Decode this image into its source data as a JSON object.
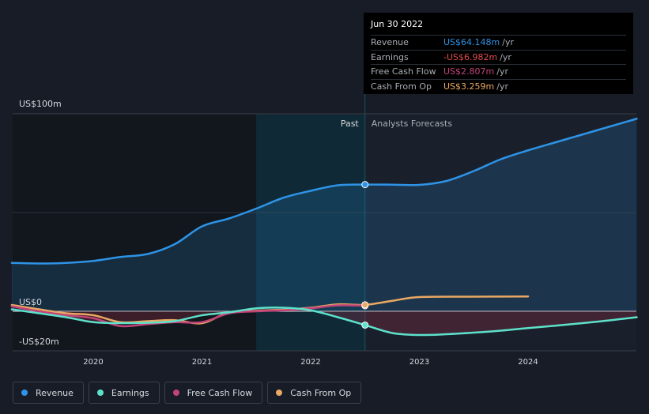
{
  "chart_data": {
    "type": "line",
    "title": "",
    "x_ticks": [
      2020,
      2021,
      2022,
      2023,
      2024
    ],
    "ylim": [
      -20,
      100
    ],
    "y_ticks": [
      {
        "value": 100,
        "label": "US$100m"
      },
      {
        "value": 0,
        "label": "US$0"
      },
      {
        "value": -20,
        "label": "-US$20m"
      }
    ],
    "past_label": "Past",
    "forecast_label": "Analysts Forecasts",
    "divider_x": 2022.5,
    "highlight_start_x": 2021.5,
    "series": [
      {
        "name": "Revenue",
        "color": "#2e93e6",
        "fill": true,
        "points": [
          [
            2019.25,
            24.5
          ],
          [
            2019.5,
            24.2
          ],
          [
            2019.75,
            24.5
          ],
          [
            2020,
            25.5
          ],
          [
            2020.25,
            27.5
          ],
          [
            2020.5,
            29
          ],
          [
            2020.75,
            34
          ],
          [
            2021,
            43
          ],
          [
            2021.25,
            47
          ],
          [
            2021.5,
            52
          ],
          [
            2021.75,
            57.5
          ],
          [
            2022,
            61
          ],
          [
            2022.25,
            63.8
          ],
          [
            2022.5,
            64.148
          ],
          [
            2022.75,
            64.1
          ],
          [
            2023,
            64
          ],
          [
            2023.25,
            66
          ],
          [
            2023.5,
            71
          ],
          [
            2023.75,
            77
          ],
          [
            2024,
            81.5
          ],
          [
            2024.25,
            85.5
          ],
          [
            2024.5,
            89.5
          ],
          [
            2024.75,
            93.5
          ],
          [
            2025,
            97.5
          ]
        ]
      },
      {
        "name": "Earnings",
        "color": "#5de1cb",
        "fill": true,
        "points": [
          [
            2019.25,
            1
          ],
          [
            2019.5,
            -1
          ],
          [
            2019.75,
            -3
          ],
          [
            2020,
            -5.5
          ],
          [
            2020.25,
            -6
          ],
          [
            2020.5,
            -5.8
          ],
          [
            2020.75,
            -5
          ],
          [
            2021,
            -2
          ],
          [
            2021.25,
            -0.5
          ],
          [
            2021.5,
            1.5
          ],
          [
            2021.75,
            1.8
          ],
          [
            2022,
            0.5
          ],
          [
            2022.25,
            -3
          ],
          [
            2022.5,
            -6.982
          ],
          [
            2022.75,
            -11
          ],
          [
            2023,
            -12
          ],
          [
            2023.25,
            -11.6
          ],
          [
            2023.5,
            -10.8
          ],
          [
            2023.75,
            -9.8
          ],
          [
            2024,
            -8.5
          ],
          [
            2024.25,
            -7.3
          ],
          [
            2024.5,
            -6
          ],
          [
            2024.75,
            -4.6
          ],
          [
            2025,
            -3
          ]
        ]
      },
      {
        "name": "Free Cash Flow",
        "color": "#c2437a",
        "fill": false,
        "points": [
          [
            2019.25,
            2.5
          ],
          [
            2019.5,
            0
          ],
          [
            2019.75,
            -2
          ],
          [
            2020,
            -3.5
          ],
          [
            2020.25,
            -7.5
          ],
          [
            2020.5,
            -6.5
          ],
          [
            2020.75,
            -5.5
          ],
          [
            2021,
            -5.5
          ],
          [
            2021.25,
            -1
          ],
          [
            2021.5,
            0
          ],
          [
            2021.75,
            0.5
          ],
          [
            2022,
            1.5
          ],
          [
            2022.25,
            3
          ],
          [
            2022.5,
            2.807
          ]
        ]
      },
      {
        "name": "Cash From Op",
        "color": "#e9a863",
        "fill": false,
        "points": [
          [
            2019.25,
            3.2
          ],
          [
            2019.5,
            1
          ],
          [
            2019.75,
            -1
          ],
          [
            2020,
            -2
          ],
          [
            2020.25,
            -5.5
          ],
          [
            2020.5,
            -5
          ],
          [
            2020.75,
            -4.5
          ],
          [
            2021,
            -6
          ],
          [
            2021.25,
            -0.5
          ],
          [
            2021.5,
            0.2
          ],
          [
            2021.75,
            0.8
          ],
          [
            2022,
            1.8
          ],
          [
            2022.25,
            3.5
          ],
          [
            2022.5,
            3.259
          ],
          [
            2022.75,
            5.3
          ],
          [
            2023,
            7.2
          ],
          [
            2023.5,
            7.4
          ],
          [
            2024,
            7.5
          ]
        ]
      }
    ]
  },
  "tooltip": {
    "date": "Jun 30 2022",
    "unit": "/yr",
    "rows": [
      {
        "label": "Revenue",
        "value": "US$64.148m",
        "color": "#2e93e6"
      },
      {
        "label": "Earnings",
        "value": "-US$6.982m",
        "color": "#e24a4a"
      },
      {
        "label": "Free Cash Flow",
        "value": "US$2.807m",
        "color": "#c2437a"
      },
      {
        "label": "Cash From Op",
        "value": "US$3.259m",
        "color": "#e9a863"
      }
    ]
  },
  "legend": [
    {
      "label": "Revenue",
      "color": "#2e93e6"
    },
    {
      "label": "Earnings",
      "color": "#5de1cb"
    },
    {
      "label": "Free Cash Flow",
      "color": "#c2437a"
    },
    {
      "label": "Cash From Op",
      "color": "#e9a863"
    }
  ]
}
